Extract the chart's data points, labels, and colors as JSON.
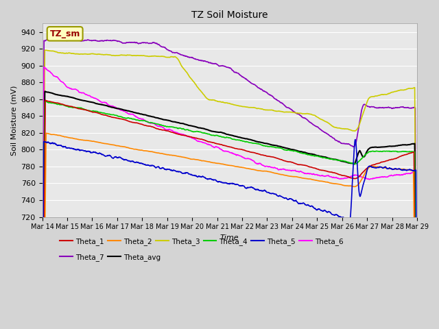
{
  "title": "TZ Soil Moisture",
  "xlabel": "Time",
  "ylabel": "Soil Moisture (mV)",
  "ylim": [
    720,
    950
  ],
  "yticks": [
    720,
    740,
    760,
    780,
    800,
    820,
    840,
    860,
    880,
    900,
    920,
    940
  ],
  "figsize": [
    6.4,
    4.8
  ],
  "dpi": 100,
  "legend_label": "TZ_sm",
  "day_labels": [
    "Mar 14",
    "Mar 15",
    "Mar 16",
    "Mar 17",
    "Mar 18",
    "Mar 19",
    "Mar 20",
    "Mar 21",
    "Mar 22",
    "Mar 23",
    "Mar 24",
    "Mar 25",
    "Mar 26",
    "Mar 27",
    "Mar 28",
    "Mar 29"
  ],
  "colors": {
    "Theta_1": "#cc0000",
    "Theta_2": "#ff8800",
    "Theta_3": "#cccc00",
    "Theta_4": "#00cc00",
    "Theta_5": "#0000cc",
    "Theta_6": "#ff00ff",
    "Theta_7": "#8800bb",
    "Theta_avg": "#000000"
  },
  "fig_bg": "#d4d4d4",
  "axes_bg": "#e8e8e8",
  "grid_color": "#ffffff"
}
